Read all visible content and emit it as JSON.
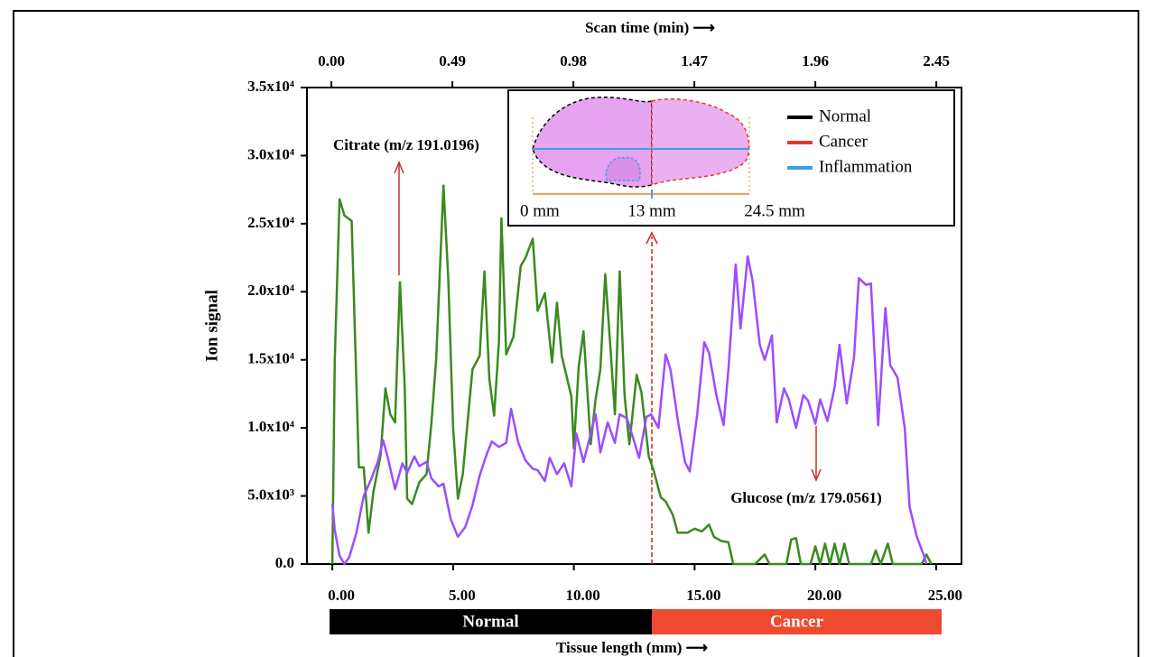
{
  "chart_data": {
    "type": "line",
    "xlabel": "Tissue length (mm) ⟶",
    "x2label": "Scan time (min) ⟶",
    "ylabel": "Ion signal",
    "xlim": [
      -1.05,
      26.05
    ],
    "xticks": [
      {
        "value": 0,
        "label": "0.00"
      },
      {
        "value": 5,
        "label": "5.00"
      },
      {
        "value": 10,
        "label": "10.00"
      },
      {
        "value": 15,
        "label": "15.00"
      },
      {
        "value": 20,
        "label": "20.00"
      },
      {
        "value": 25,
        "label": "25.00"
      }
    ],
    "x2lim": [
      -0.099,
      2.552
    ],
    "x2ticks": [
      {
        "value": 0,
        "label": "0.00"
      },
      0.49,
      0.98,
      1.47,
      1.96,
      2.45
    ],
    "ylim": [
      0,
      35000
    ],
    "yticks": [
      {
        "value": 0,
        "label": "0.0"
      },
      {
        "value": 5000,
        "label": "5.0x10³"
      },
      {
        "value": 10000,
        "label": "1.0x10⁴"
      },
      {
        "value": 15000,
        "label": "1.5x10⁴"
      },
      {
        "value": 20000,
        "label": "2.0x10⁴"
      },
      {
        "value": 25000,
        "label": "2.5x10⁴"
      },
      {
        "value": 30000,
        "label": "3.0x10⁴"
      },
      {
        "value": 35000,
        "label": "3.5x10⁴"
      }
    ],
    "series": [
      {
        "name": "Citrate (m/z 191.0196)",
        "color": "#3a8a1e",
        "x": [
          0.0,
          0.1,
          0.3,
          0.5,
          0.8,
          1.1,
          1.3,
          1.5,
          1.7,
          2.0,
          2.2,
          2.4,
          2.6,
          2.8,
          3.0,
          3.1,
          3.3,
          3.6,
          3.9,
          4.1,
          4.3,
          4.6,
          4.8,
          5.0,
          5.2,
          5.4,
          5.8,
          6.1,
          6.3,
          6.5,
          6.7,
          6.9,
          7.0,
          7.2,
          7.5,
          7.8,
          8.0,
          8.3,
          8.5,
          8.8,
          9.1,
          9.3,
          9.5,
          9.9,
          10.0,
          10.2,
          10.4,
          10.7,
          10.9,
          11.1,
          11.3,
          11.5,
          11.7,
          11.9,
          12.1,
          12.3,
          12.6,
          12.8,
          13.1,
          13.3,
          13.6,
          13.8,
          14.1,
          14.3,
          14.7,
          15.0,
          15.3,
          15.6,
          15.8,
          16.1,
          16.4,
          16.6,
          17.5,
          17.9,
          18.1,
          18.8,
          19.0,
          19.2,
          19.4,
          19.8,
          20.0,
          20.2,
          20.4,
          20.6,
          20.8,
          21.0,
          21.2,
          21.4,
          22.3,
          22.5,
          22.7,
          23.0,
          23.2,
          24.4,
          24.6,
          24.8
        ],
        "values": [
          0,
          15000,
          26800,
          25600,
          25200,
          7100,
          7100,
          2300,
          5300,
          8000,
          12900,
          11000,
          10400,
          20700,
          13000,
          4800,
          4400,
          6000,
          6600,
          10300,
          15000,
          27800,
          21000,
          10000,
          4800,
          6600,
          14300,
          15300,
          21500,
          13600,
          10900,
          16400,
          25400,
          15400,
          16700,
          21900,
          22500,
          23900,
          18600,
          19900,
          14800,
          19200,
          15300,
          12300,
          8500,
          14500,
          17100,
          8800,
          12100,
          14300,
          21300,
          16300,
          11000,
          21500,
          12400,
          8800,
          13900,
          12600,
          7900,
          6900,
          4900,
          4600,
          3600,
          2300,
          2300,
          2600,
          2400,
          2900,
          2000,
          1700,
          1600,
          0,
          0,
          700,
          0,
          0,
          1800,
          1900,
          0,
          0,
          1300,
          0,
          1500,
          0,
          1500,
          0,
          1500,
          0,
          0,
          1000,
          0,
          1500,
          0,
          0,
          700,
          0
        ]
      },
      {
        "name": "Glucose (m/z 179.0561)",
        "color": "#9b4dff",
        "x": [
          0.0,
          0.1,
          0.3,
          0.5,
          0.7,
          1.0,
          1.3,
          1.6,
          1.9,
          2.1,
          2.3,
          2.6,
          2.9,
          3.1,
          3.4,
          3.6,
          3.9,
          4.1,
          4.4,
          4.6,
          4.9,
          5.2,
          5.5,
          5.8,
          6.1,
          6.4,
          6.6,
          6.9,
          7.2,
          7.4,
          7.7,
          8.0,
          8.3,
          8.5,
          8.8,
          9.0,
          9.3,
          9.6,
          9.9,
          10.1,
          10.4,
          10.6,
          10.9,
          11.1,
          11.4,
          11.7,
          11.9,
          12.2,
          12.5,
          12.7,
          13.0,
          13.2,
          13.5,
          13.8,
          14.0,
          14.3,
          14.6,
          14.8,
          15.1,
          15.4,
          15.6,
          15.9,
          16.2,
          16.4,
          16.7,
          16.9,
          17.2,
          17.4,
          17.7,
          17.9,
          18.2,
          18.4,
          18.7,
          18.9,
          19.2,
          19.5,
          19.7,
          20.0,
          20.2,
          20.5,
          20.8,
          21.0,
          21.3,
          21.6,
          21.8,
          22.1,
          22.3,
          22.6,
          22.9,
          23.1,
          23.4,
          23.7,
          23.9,
          24.2,
          24.5,
          24.6
        ],
        "values": [
          4400,
          2500,
          600,
          0,
          500,
          2300,
          5000,
          6200,
          7600,
          9100,
          7800,
          5500,
          7400,
          6700,
          7900,
          7200,
          7500,
          6300,
          5700,
          5900,
          3300,
          2000,
          2700,
          4300,
          6500,
          8100,
          9000,
          8600,
          8900,
          11400,
          8900,
          7600,
          7000,
          6900,
          6100,
          7800,
          6600,
          7400,
          5700,
          9600,
          7500,
          8900,
          11000,
          8200,
          10400,
          8900,
          11000,
          10700,
          9000,
          7800,
          10800,
          11000,
          10000,
          15400,
          14300,
          10600,
          7500,
          6800,
          10900,
          16300,
          15500,
          12400,
          10200,
          14300,
          22000,
          17300,
          22600,
          20800,
          16100,
          15000,
          16800,
          10400,
          12900,
          12100,
          10000,
          12400,
          12000,
          10300,
          12100,
          10500,
          13000,
          16100,
          11800,
          15200,
          21000,
          20500,
          20600,
          10200,
          18800,
          14600,
          13700,
          10000,
          4200,
          2000,
          600,
          0
        ]
      }
    ],
    "inset": {
      "legend": [
        {
          "label": "Normal",
          "color": "#000000"
        },
        {
          "label": "Cancer",
          "color": "#e8352b"
        },
        {
          "label": "Inflammation",
          "color": "#3aa0e8"
        }
      ],
      "scale_labels": [
        "0 mm",
        "13 mm",
        "24.5 mm"
      ]
    },
    "regions": [
      {
        "label": "Normal",
        "color": "#000000"
      },
      {
        "label": "Cancer",
        "color": "#ee4a30"
      }
    ]
  }
}
